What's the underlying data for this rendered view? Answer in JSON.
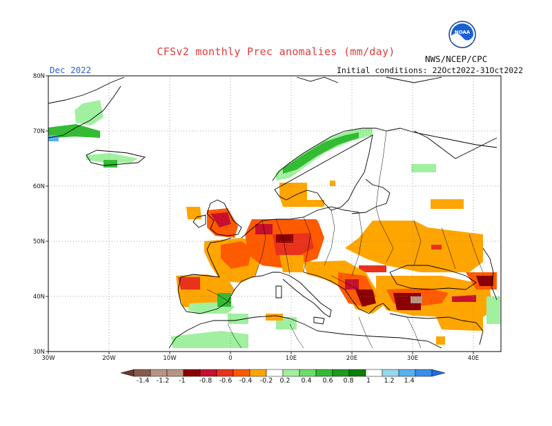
{
  "header": {
    "title": "CFSv2 monthly Prec anomalies (mm/day)",
    "agency": "NWS/NCEP/CPC",
    "logo_text": "NOAA",
    "month": "Dec 2022",
    "initial_conditions": "Initial conditions: 22Oct2022-31Oct2022"
  },
  "axes": {
    "lat_labels": [
      "80N",
      "70N",
      "60N",
      "50N",
      "40N",
      "30N"
    ],
    "lon_labels": [
      "30W",
      "20W",
      "10W",
      "0",
      "10E",
      "20E",
      "30E",
      "40E"
    ],
    "lat_range": [
      30,
      80
    ],
    "lon_range": [
      -30,
      45
    ],
    "grid": "dotted"
  },
  "colorbar": {
    "labels": [
      "-1.4",
      "-1.2",
      "-1",
      "-0.8",
      "-0.6",
      "-0.4",
      "-0.2",
      "0.2",
      "0.4",
      "0.6",
      "0.8",
      "1",
      "1.2",
      "1.4"
    ],
    "colors": {
      "below_min": "#6b3a2e",
      "n14": "#8a5a48",
      "n12": "#b89484",
      "n10": "#8b0000",
      "n08": "#c8102e",
      "n06": "#e8321c",
      "n04": "#ff5a00",
      "n02": "#ffa500",
      "zero": "#ffffff",
      "p02": "#a0f0a0",
      "p04": "#6ddc6d",
      "p06": "#33bb33",
      "p08": "#1e9a1e",
      "p10": "#0b7d0b",
      "p12": "#96d8f0",
      "p14": "#5ab0f0",
      "above_max": "#1f6fe0"
    }
  },
  "map_colors": {
    "ocean": "#ffffff",
    "coast": "#000000",
    "grid": "#888888"
  }
}
